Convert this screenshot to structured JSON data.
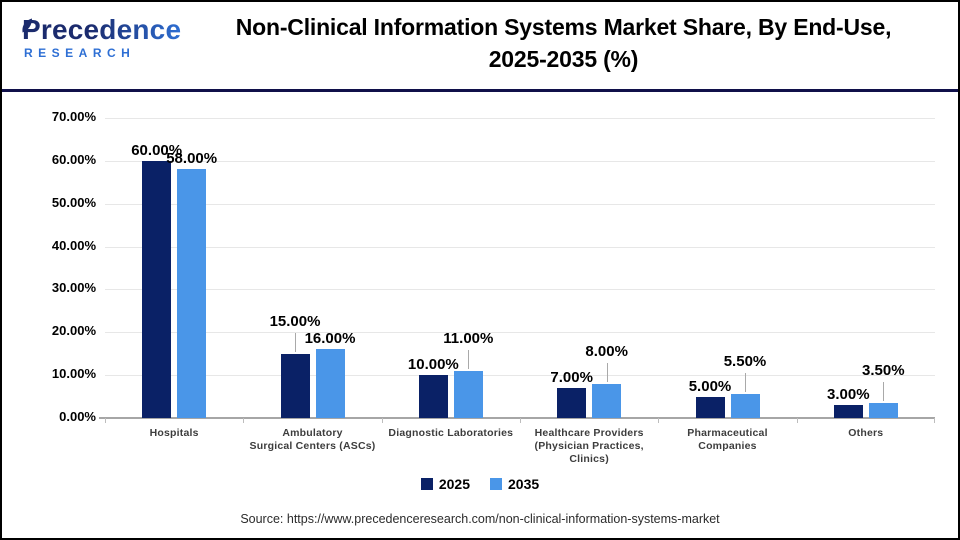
{
  "header": {
    "logo": {
      "wordmark": "Precedence",
      "subtext": "RESEARCH"
    },
    "title_line1": "Non-Clinical Information Systems Market Share, By End-Use,",
    "title_line2": "2025-2035 (%)"
  },
  "chart_data": {
    "type": "bar",
    "title": "Non-Clinical Information Systems Market Share, By End-Use, 2025-2035 (%)",
    "xlabel": "",
    "ylabel": "",
    "grid": "horizontal",
    "legend_position": "bottom",
    "y_axis": {
      "min": 0,
      "max": 70,
      "step": 10,
      "tick_labels": [
        "0.00%",
        "10.00%",
        "20.00%",
        "30.00%",
        "40.00%",
        "50.00%",
        "60.00%",
        "70.00%"
      ]
    },
    "categories": [
      [
        "Hospitals"
      ],
      [
        "Ambulatory",
        "Surgical Centers (ASCs)"
      ],
      [
        "Diagnostic Laboratories"
      ],
      [
        "Healthcare Providers",
        "(Physician Practices,",
        "Clinics)"
      ],
      [
        "Pharmaceutical",
        "Companies"
      ],
      [
        "Others"
      ]
    ],
    "series": [
      {
        "name": "2025",
        "color": "#0a2166",
        "points": [
          {
            "value": 60,
            "label": "60.00%",
            "raised": false
          },
          {
            "value": 15,
            "label": "15.00%",
            "raised": true
          },
          {
            "value": 10,
            "label": "10.00%",
            "raised": false
          },
          {
            "value": 7,
            "label": "7.00%",
            "raised": false
          },
          {
            "value": 5,
            "label": "5.00%",
            "raised": false
          },
          {
            "value": 3,
            "label": "3.00%",
            "raised": false
          }
        ]
      },
      {
        "name": "2035",
        "color": "#4a96e8",
        "points": [
          {
            "value": 58,
            "label": "58.00%",
            "raised": false
          },
          {
            "value": 16,
            "label": "16.00%",
            "raised": false
          },
          {
            "value": 11,
            "label": "11.00%",
            "raised": true
          },
          {
            "value": 8,
            "label": "8.00%",
            "raised": true
          },
          {
            "value": 5.5,
            "label": "5.50%",
            "raised": true
          },
          {
            "value": 3.5,
            "label": "3.50%",
            "raised": true
          }
        ]
      }
    ]
  },
  "footer": {
    "source": "Source: https://www.precedenceresearch.com/non-clinical-information-systems-market"
  },
  "colors": {
    "bar_2025": "#0a2166",
    "bar_2035": "#4a96e8",
    "header_rule": "#10104a",
    "axis": "#a6a6a6",
    "gridline": "#e7e7e7",
    "logo_navy": "#1b2b6d",
    "logo_blue": "#2e6fd4"
  }
}
